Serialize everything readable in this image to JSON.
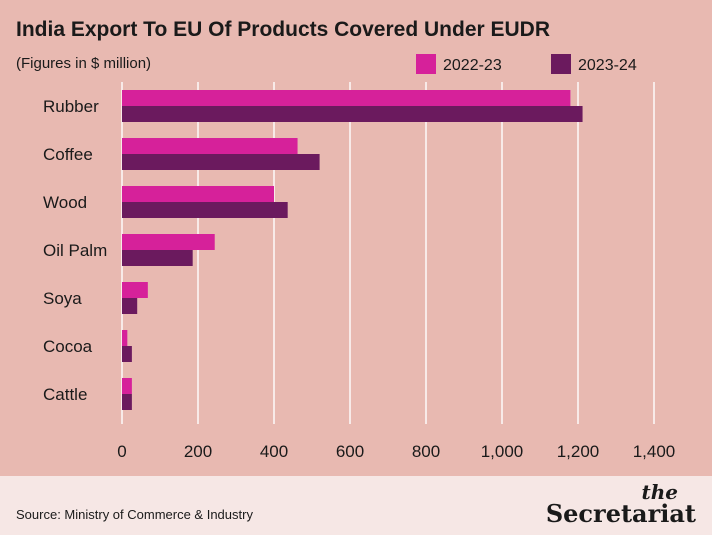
{
  "chart_data": {
    "type": "bar",
    "orientation": "horizontal",
    "title": "India Export To EU Of Products Covered Under EUDR",
    "subtitle": "(Figures in $ million)",
    "categories": [
      "Rubber",
      "Coffee",
      "Wood",
      "Oil Palm",
      "Soya",
      "Cocoa",
      "Cattle"
    ],
    "series": [
      {
        "name": "2022-23",
        "color": "#d6219a",
        "values": [
          1180,
          462,
          400,
          244,
          68,
          14,
          26
        ]
      },
      {
        "name": "2023-24",
        "color": "#6b1a5e",
        "values": [
          1212,
          520,
          436,
          186,
          40,
          26,
          26
        ]
      }
    ],
    "xlim": [
      0,
      1400
    ],
    "xticks": [
      0,
      200,
      400,
      600,
      800,
      1000,
      1200,
      1400
    ],
    "xtick_labels": [
      "0",
      "200",
      "400",
      "600",
      "800",
      "1,000",
      "1,200",
      "1,400"
    ],
    "grid": true,
    "legend_position": "top-right"
  },
  "footer": {
    "source": "Source: Ministry of Commerce & Industry",
    "brand_the": "the",
    "brand_name": "Secretariat"
  }
}
